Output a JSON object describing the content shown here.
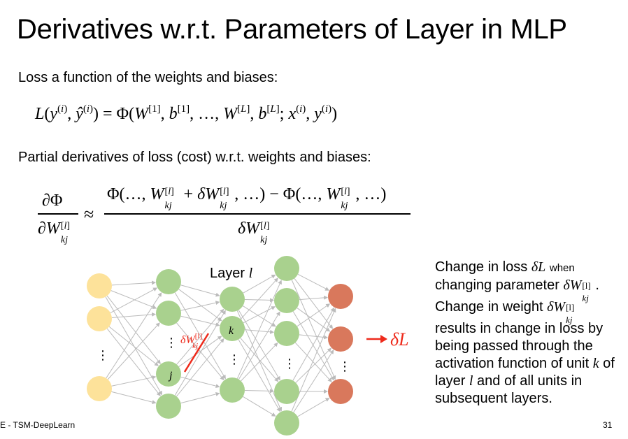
{
  "slide": {
    "title": "Derivatives w.r.t. Parameters of Layer in MLP",
    "intro_loss": "Loss a function of the weights and biases:",
    "intro_partial": "Partial derivatives of loss (cost) w.r.t. weights and biases:",
    "footer": "E - TSM-DeepLearn",
    "page_number": "31"
  },
  "equations": {
    "eq1_lhs_L": "L",
    "eq1_rhs_phi": "Φ",
    "eq2_numerator": "∂Φ",
    "eq2_denominator": "∂W",
    "approx": "≈"
  },
  "diagram": {
    "layer_label": "Layer",
    "layer_var": "l",
    "node_k": "k",
    "node_j": "j",
    "dots": "⋮",
    "delta_w": "δW",
    "delta_w_sup": "[l]",
    "delta_w_sub": "kj",
    "delta_L": "δL",
    "colors": {
      "input": "#fde29a",
      "hidden": "#a9d18e",
      "output": "#d9785c",
      "red": "#ee2a1b",
      "edge": "#bbbbbb"
    }
  },
  "side_text": {
    "line1a": "Change in loss",
    "line1b": "δL",
    "line1c": "when",
    "line2a": "changing parameter",
    "line2b": "δW",
    "line2c": ".",
    "line3a": "Change in weight",
    "line3b": "δW",
    "rest": "results in change in loss by being passed through the activation function of unit",
    "unit_k": "k",
    "of_layer": "of layer",
    "layer_l": "l",
    "and_all": "and of all units in subsequent layers.",
    "sup_l": "[l]",
    "sub_kj": "kj"
  }
}
